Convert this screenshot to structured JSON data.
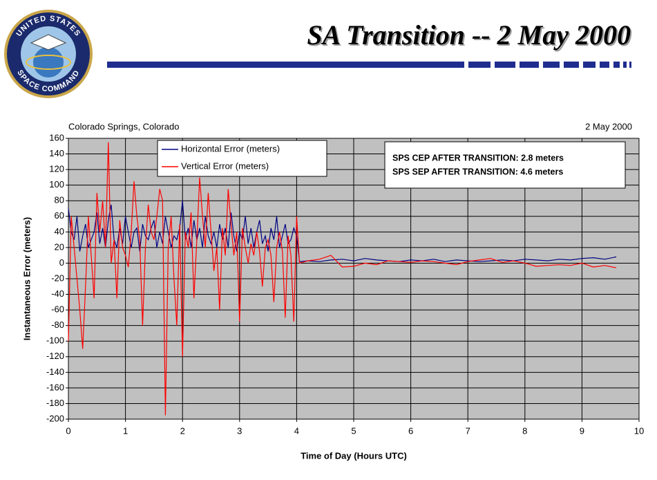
{
  "chart_data": {
    "type": "line",
    "title": "SA Transition -- 2 May 2000",
    "logo": {
      "top": "UNITED STATES",
      "bottom": "SPACE COMMAND"
    },
    "notes": {
      "left": "Colorado Springs, Colorado",
      "right": "2 May 2000"
    },
    "stats": [
      "SPS CEP AFTER TRANSITION:  2.8 meters",
      "SPS SEP AFTER TRANSITION:  4.6 meters"
    ],
    "xlabel": "Time of Day (Hours UTC)",
    "ylabel": "Instantaneous Error (meters)",
    "x": [
      0,
      0.05,
      0.1,
      0.15,
      0.2,
      0.25,
      0.3,
      0.35,
      0.4,
      0.45,
      0.5,
      0.55,
      0.6,
      0.65,
      0.7,
      0.75,
      0.8,
      0.85,
      0.9,
      0.95,
      1,
      1.05,
      1.1,
      1.15,
      1.2,
      1.25,
      1.3,
      1.35,
      1.4,
      1.45,
      1.5,
      1.55,
      1.6,
      1.65,
      1.7,
      1.75,
      1.8,
      1.85,
      1.9,
      1.95,
      2,
      2.05,
      2.1,
      2.15,
      2.2,
      2.25,
      2.3,
      2.35,
      2.4,
      2.45,
      2.5,
      2.55,
      2.6,
      2.65,
      2.7,
      2.75,
      2.8,
      2.85,
      2.9,
      2.95,
      3,
      3.05,
      3.1,
      3.15,
      3.2,
      3.25,
      3.3,
      3.35,
      3.4,
      3.45,
      3.5,
      3.55,
      3.6,
      3.65,
      3.7,
      3.75,
      3.8,
      3.85,
      3.9,
      3.95,
      4,
      4.05,
      4.2,
      4.4,
      4.6,
      4.8,
      5,
      5.2,
      5.4,
      5.6,
      5.8,
      6,
      6.2,
      6.4,
      6.6,
      6.8,
      7,
      7.2,
      7.4,
      7.6,
      7.8,
      8,
      8.2,
      8.4,
      8.6,
      8.8,
      9,
      9.2,
      9.4,
      9.6
    ],
    "series": [
      {
        "name": "Horizontal Error (meters)",
        "color": "#000080",
        "values": [
          70,
          40,
          30,
          60,
          15,
          35,
          50,
          20,
          30,
          40,
          65,
          25,
          45,
          20,
          55,
          75,
          30,
          20,
          45,
          25,
          60,
          40,
          20,
          40,
          45,
          15,
          50,
          35,
          30,
          45,
          55,
          20,
          40,
          25,
          60,
          40,
          20,
          35,
          30,
          45,
          80,
          30,
          45,
          20,
          55,
          30,
          45,
          20,
          60,
          35,
          25,
          40,
          20,
          50,
          30,
          45,
          20,
          65,
          35,
          15,
          40,
          30,
          60,
          25,
          45,
          20,
          40,
          55,
          25,
          35,
          15,
          45,
          30,
          60,
          20,
          35,
          50,
          25,
          30,
          45,
          35,
          2,
          3,
          2,
          4,
          5,
          3,
          6,
          4,
          3,
          2,
          4,
          3,
          5,
          2,
          4,
          3,
          2,
          3,
          4,
          3,
          5,
          4,
          3,
          5,
          4,
          6,
          7,
          5,
          8
        ]
      },
      {
        "name": "Vertical Error (meters)",
        "color": "#ff0000",
        "values": [
          -100,
          60,
          20,
          -20,
          -60,
          -110,
          -30,
          60,
          10,
          -45,
          90,
          40,
          80,
          20,
          155,
          0,
          30,
          -45,
          55,
          20,
          10,
          -5,
          40,
          105,
          60,
          30,
          -80,
          20,
          75,
          40,
          30,
          60,
          95,
          80,
          -195,
          20,
          60,
          -20,
          -80,
          50,
          -120,
          40,
          20,
          65,
          -45,
          30,
          110,
          60,
          20,
          90,
          40,
          -10,
          20,
          -60,
          45,
          10,
          95,
          50,
          10,
          40,
          -75,
          45,
          20,
          0,
          25,
          10,
          40,
          15,
          -30,
          20,
          30,
          10,
          -50,
          20,
          40,
          15,
          -70,
          35,
          10,
          -75,
          60,
          0,
          3,
          5,
          10,
          -5,
          -4,
          0,
          -2,
          3,
          2,
          1,
          3,
          2,
          0,
          -2,
          2,
          4,
          6,
          1,
          3,
          0,
          -4,
          -3,
          -2,
          -3,
          0,
          -5,
          -3,
          -6
        ]
      }
    ],
    "xlim": [
      0,
      10
    ],
    "xticks": [
      0,
      1,
      2,
      3,
      4,
      5,
      6,
      7,
      8,
      9,
      10
    ],
    "ylim": [
      -200,
      160
    ],
    "yticks": [
      -200,
      -180,
      -160,
      -140,
      -120,
      -100,
      -80,
      -60,
      -40,
      -20,
      0,
      20,
      40,
      60,
      80,
      100,
      120,
      140,
      160
    ],
    "grid": true,
    "plot_background": "#c0c0c0"
  }
}
